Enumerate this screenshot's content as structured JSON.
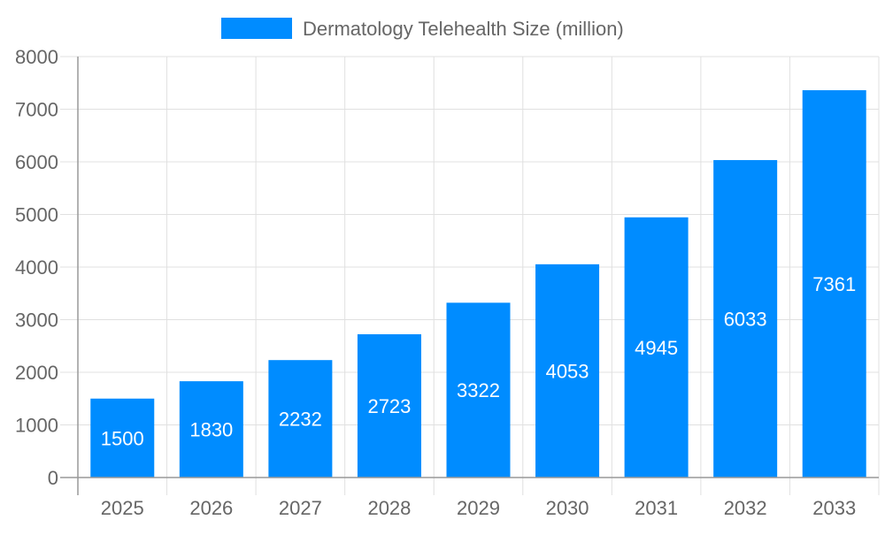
{
  "chart_data": {
    "type": "bar",
    "title": "",
    "xlabel": "",
    "ylabel": "",
    "categories": [
      "2025",
      "2026",
      "2027",
      "2028",
      "2029",
      "2030",
      "2031",
      "2032",
      "2033"
    ],
    "series": [
      {
        "name": "Dermatology Telehealth Size (million)",
        "values": [
          1500,
          1830,
          2232,
          2723,
          3322,
          4053,
          4945,
          6033,
          7361
        ],
        "color": "#008cff"
      }
    ],
    "ylim": [
      0,
      8000
    ],
    "yticks": [
      "0",
      "1000",
      "2000",
      "3000",
      "4000",
      "5000",
      "6000",
      "7000",
      "8000"
    ],
    "grid": true,
    "legend": "top-center",
    "data_labels": "inside-bar"
  }
}
